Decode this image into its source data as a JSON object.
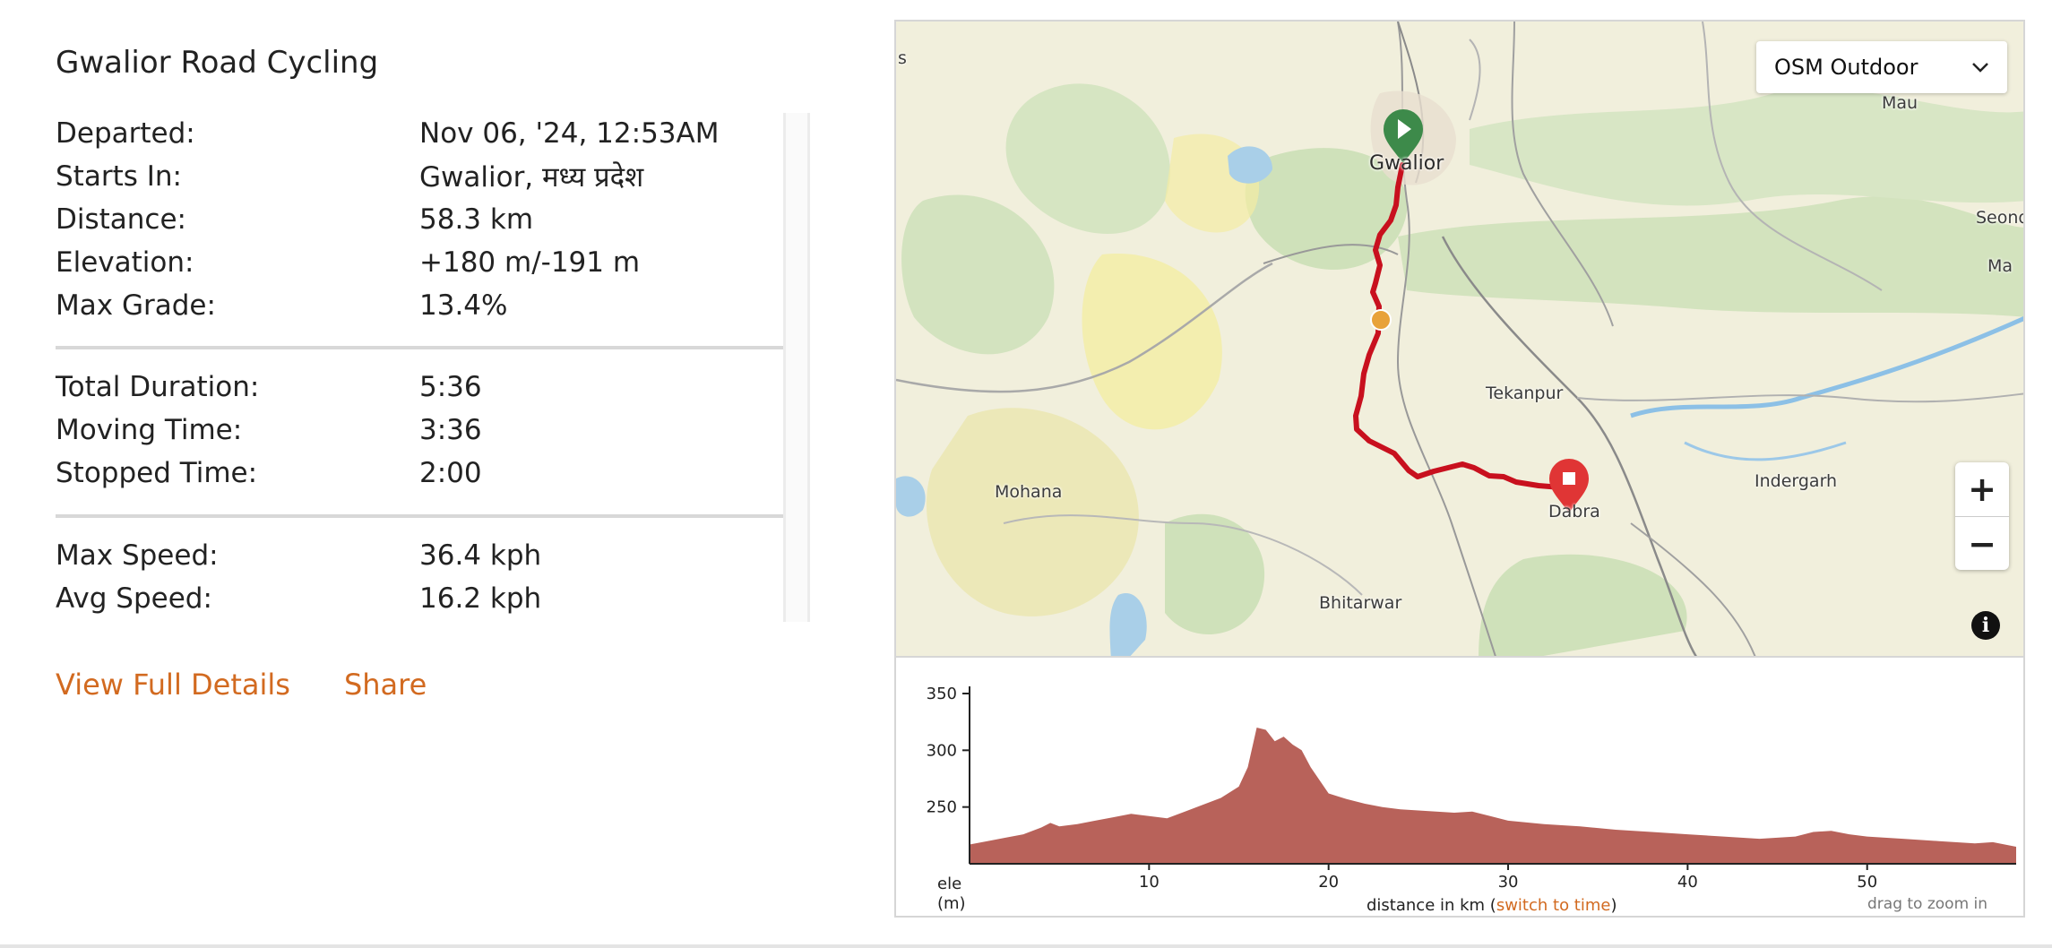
{
  "ride": {
    "title": "Gwalior Road Cycling",
    "summary": [
      {
        "label": "Departed:",
        "value": "Nov 06, '24, 12:53AM"
      },
      {
        "label": "Starts In:",
        "value": "Gwalior, मध्य प्रदेश"
      },
      {
        "label": "Distance:",
        "value": "58.3 km"
      },
      {
        "label": "Elevation:",
        "value": "+180 m/-191 m"
      },
      {
        "label": "Max Grade:",
        "value": "13.4%"
      }
    ],
    "times": [
      {
        "label": "Total Duration:",
        "value": "5:36"
      },
      {
        "label": "Moving Time:",
        "value": "3:36"
      },
      {
        "label": "Stopped Time:",
        "value": "2:00"
      }
    ],
    "speeds": [
      {
        "label": "Max Speed:",
        "value": "36.4 kph"
      },
      {
        "label": "Avg Speed:",
        "value": "16.2 kph"
      }
    ],
    "actions": {
      "details": "View Full Details",
      "share": "Share"
    }
  },
  "map": {
    "layer": "OSM Outdoor",
    "zoom_in": "+",
    "zoom_out": "−",
    "info": "i",
    "route_color": "#c8101e",
    "start_marker_color": "#3d8a4a",
    "end_marker_color": "#e03535",
    "midpoint_color": "#e8a23a",
    "places": {
      "gwalior": "Gwalior",
      "tekanpur": "Tekanpur",
      "indergarh": "Indergarh",
      "mohana": "Mohana",
      "dabra": "Dabra",
      "bhitarwar": "Bhitarwar",
      "mau": "Mau",
      "seondha": "Seond",
      "ma": "Ma",
      "s": "s"
    }
  },
  "elevation": {
    "y_label_1": "ele",
    "y_label_2": "(m)",
    "x_label": "distance in km (",
    "switch": "switch to time",
    "x_label_end": ")",
    "hint": "drag to zoom in",
    "fill_color": "#b8625a"
  },
  "chart_data": {
    "type": "area",
    "xlabel": "distance in km",
    "ylabel": "ele (m)",
    "xlim": [
      0,
      58.3
    ],
    "ylim": [
      200,
      350
    ],
    "x_ticks": [
      10,
      20,
      30,
      40,
      50
    ],
    "y_ticks": [
      250,
      300,
      350
    ],
    "x": [
      0,
      1,
      2,
      3,
      4,
      4.5,
      5,
      6,
      7,
      8,
      9,
      10,
      11,
      12,
      13,
      14,
      15,
      15.5,
      16,
      16.5,
      17,
      17.5,
      18,
      18.5,
      19,
      20,
      21,
      22,
      23,
      24,
      25,
      26,
      27,
      28,
      29,
      30,
      32,
      34,
      36,
      38,
      40,
      42,
      44,
      46,
      47,
      48,
      49,
      50,
      52,
      54,
      56,
      57,
      58.3
    ],
    "series": [
      {
        "values": [
          217,
          220,
          223,
          226,
          232,
          236,
          233,
          235,
          238,
          241,
          244,
          242,
          240,
          246,
          252,
          258,
          268,
          285,
          320,
          318,
          308,
          312,
          305,
          300,
          285,
          262,
          257,
          253,
          250,
          248,
          247,
          246,
          245,
          246,
          242,
          238,
          235,
          233,
          230,
          228,
          226,
          224,
          222,
          224,
          228,
          229,
          226,
          224,
          222,
          220,
          218,
          219,
          215
        ]
      }
    ]
  }
}
